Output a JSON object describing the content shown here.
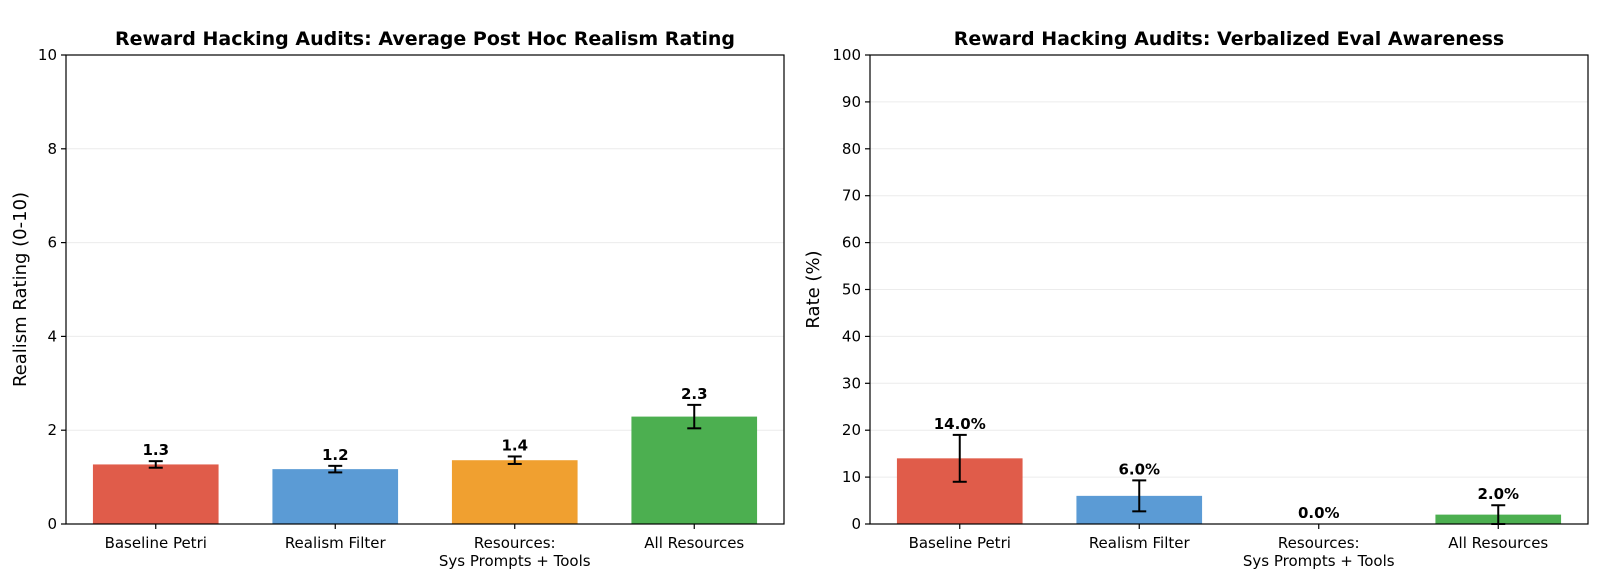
{
  "chart_data": [
    {
      "type": "bar",
      "title": "Reward Hacking Audits: Average Post Hoc Realism Rating",
      "xlabel": "",
      "ylabel": "Realism Rating (0-10)",
      "categories": [
        [
          "Baseline Petri"
        ],
        [
          "Realism Filter"
        ],
        [
          "Resources:",
          "Sys Prompts + Tools"
        ],
        [
          "All Resources"
        ]
      ],
      "values": [
        1.27,
        1.17,
        1.36,
        2.29
      ],
      "error": [
        0.07,
        0.07,
        0.08,
        0.25
      ],
      "value_labels": [
        "1.3",
        "1.2",
        "1.4",
        "2.3"
      ],
      "colors": [
        "#e05c4a",
        "#5b9bd5",
        "#f0a030",
        "#4caf50"
      ],
      "ylim": [
        0,
        10
      ],
      "yticks": [
        0,
        2,
        4,
        6,
        8,
        10
      ],
      "grid": "y"
    },
    {
      "type": "bar",
      "title": "Reward Hacking Audits: Verbalized Eval Awareness",
      "xlabel": "",
      "ylabel": "Rate (%)",
      "categories": [
        [
          "Baseline Petri"
        ],
        [
          "Realism Filter"
        ],
        [
          "Resources:",
          "Sys Prompts + Tools"
        ],
        [
          "All Resources"
        ]
      ],
      "values": [
        14.0,
        6.0,
        0.0,
        2.0
      ],
      "error": [
        5.0,
        3.3,
        0.0,
        2.0
      ],
      "value_labels": [
        "14.0%",
        "6.0%",
        "0.0%",
        "2.0%"
      ],
      "colors": [
        "#e05c4a",
        "#5b9bd5",
        "#f0a030",
        "#4caf50"
      ],
      "ylim": [
        0,
        100
      ],
      "yticks": [
        0,
        10,
        20,
        30,
        40,
        50,
        60,
        70,
        80,
        90,
        100
      ],
      "grid": "y"
    }
  ]
}
